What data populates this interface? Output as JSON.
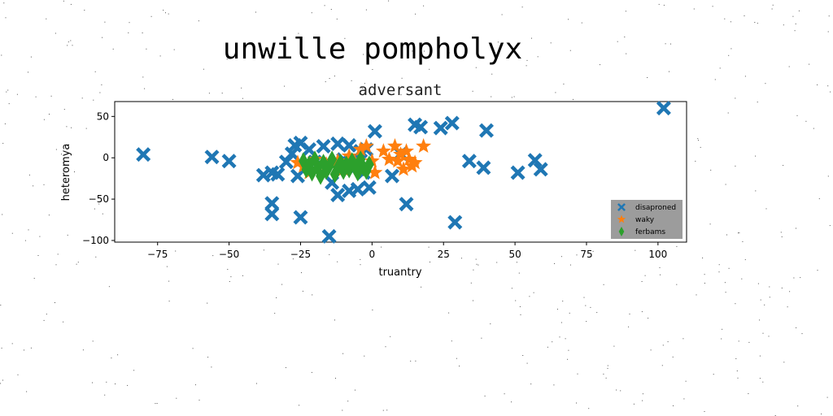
{
  "figure_title": "unwille pompholyx",
  "chart_data": {
    "type": "scatter",
    "title": "adversant",
    "xlabel": "truantry",
    "ylabel": "heteromya",
    "xlim": [
      -90,
      110
    ],
    "ylim": [
      -102,
      68
    ],
    "xticks": [
      -75,
      -50,
      -25,
      0,
      25,
      50,
      75,
      100
    ],
    "yticks": [
      -100,
      -50,
      0,
      50
    ],
    "legend_position": "lower-right",
    "grid": false,
    "series": [
      {
        "name": "disaproned",
        "marker": "X",
        "color": "#1f77b4",
        "points": [
          [
            -80,
            4
          ],
          [
            -56,
            1
          ],
          [
            -50,
            -4
          ],
          [
            -38,
            -21
          ],
          [
            -35,
            -18
          ],
          [
            -33,
            -20
          ],
          [
            -35,
            -55
          ],
          [
            -35,
            -68
          ],
          [
            -30,
            -5
          ],
          [
            -28,
            5
          ],
          [
            -27,
            15
          ],
          [
            -25,
            18
          ],
          [
            -26,
            -22
          ],
          [
            -25,
            -72
          ],
          [
            -22,
            10
          ],
          [
            -20,
            -5
          ],
          [
            -18,
            -8
          ],
          [
            -17,
            14
          ],
          [
            -15,
            -95
          ],
          [
            -14,
            -30
          ],
          [
            -12,
            -45
          ],
          [
            -12,
            17
          ],
          [
            -10,
            -2
          ],
          [
            -8,
            15
          ],
          [
            -8,
            -40
          ],
          [
            -6,
            -12
          ],
          [
            -5,
            -38
          ],
          [
            -4,
            8
          ],
          [
            -3,
            -18
          ],
          [
            -2,
            10
          ],
          [
            -1,
            -36
          ],
          [
            1,
            32
          ],
          [
            7,
            -22
          ],
          [
            10,
            5
          ],
          [
            12,
            -56
          ],
          [
            15,
            40
          ],
          [
            17,
            37
          ],
          [
            24,
            36
          ],
          [
            28,
            42
          ],
          [
            29,
            -78
          ],
          [
            34,
            -4
          ],
          [
            39,
            -12
          ],
          [
            40,
            33
          ],
          [
            51,
            -18
          ],
          [
            57,
            -3
          ],
          [
            59,
            -14
          ],
          [
            102,
            60
          ]
        ]
      },
      {
        "name": "waky",
        "marker": "*",
        "color": "#ff7f0e",
        "points": [
          [
            -26,
            -6
          ],
          [
            -24,
            -10
          ],
          [
            -22,
            -18
          ],
          [
            -20,
            -2
          ],
          [
            -16,
            -8
          ],
          [
            -12,
            -4
          ],
          [
            -10,
            -14
          ],
          [
            -8,
            2
          ],
          [
            -6,
            -6
          ],
          [
            -4,
            10
          ],
          [
            -2,
            14
          ],
          [
            0,
            -4
          ],
          [
            1,
            -18
          ],
          [
            4,
            8
          ],
          [
            6,
            -2
          ],
          [
            8,
            14
          ],
          [
            9,
            -4
          ],
          [
            10,
            4
          ],
          [
            11,
            -14
          ],
          [
            12,
            8
          ],
          [
            13,
            -2
          ],
          [
            14,
            -10
          ],
          [
            15,
            -6
          ],
          [
            18,
            14
          ]
        ]
      },
      {
        "name": "ferbams",
        "marker": "d",
        "color": "#2ca02c",
        "points": [
          [
            -24,
            -4
          ],
          [
            -23,
            -14
          ],
          [
            -22,
            -8
          ],
          [
            -21,
            -18
          ],
          [
            -20,
            -2
          ],
          [
            -19,
            -12
          ],
          [
            -18,
            -22
          ],
          [
            -17,
            -6
          ],
          [
            -16,
            -16
          ],
          [
            -15,
            -10
          ],
          [
            -14,
            -2
          ],
          [
            -13,
            -20
          ],
          [
            -12,
            -12
          ],
          [
            -11,
            -6
          ],
          [
            -10,
            -16
          ],
          [
            -9,
            -8
          ],
          [
            -8,
            -14
          ],
          [
            -7,
            -4
          ],
          [
            -6,
            -10
          ],
          [
            -5,
            -18
          ],
          [
            -4,
            -2
          ],
          [
            -3,
            -12
          ],
          [
            -2,
            -16
          ],
          [
            -1,
            -8
          ]
        ]
      }
    ]
  }
}
